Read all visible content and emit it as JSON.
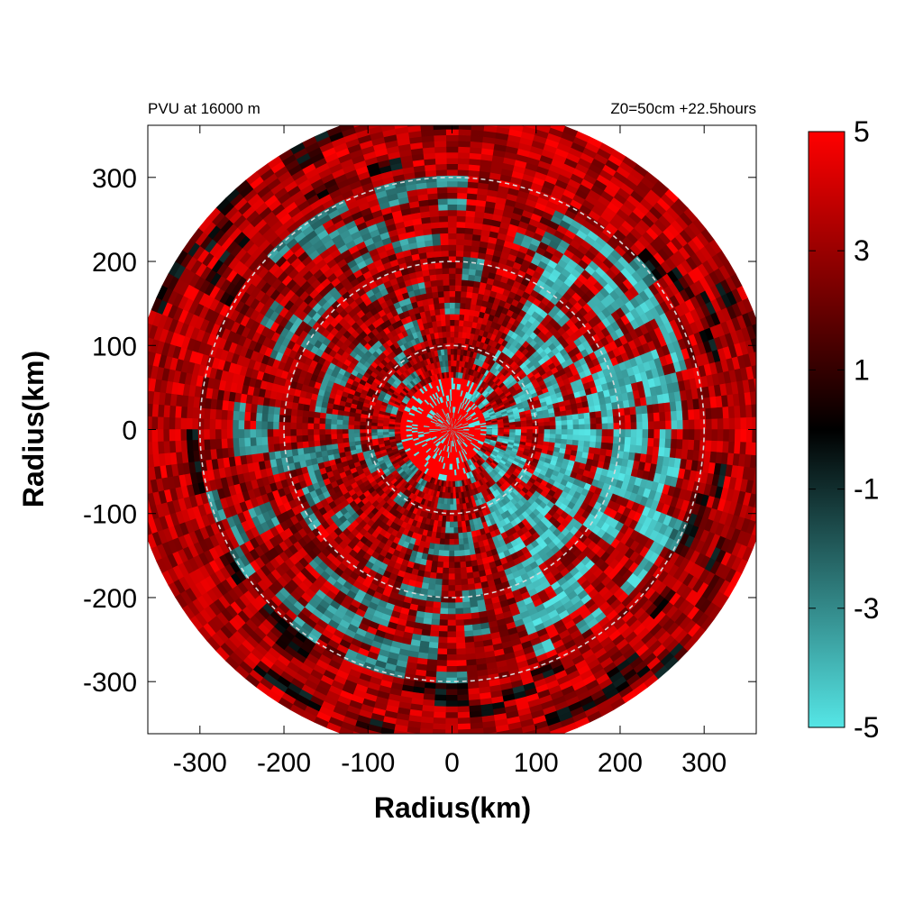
{
  "chart_data": {
    "type": "heatmap",
    "title_left": "PVU at 16000 m",
    "title_right": "Z0=50cm  +22.5hours",
    "xlabel": "Radius(km)",
    "ylabel": "Radius(km)",
    "xlim": [
      -362,
      362
    ],
    "ylim": [
      -362,
      362
    ],
    "domain_radius_km": 385,
    "xticks": [
      -300,
      -200,
      -100,
      0,
      100,
      200,
      300
    ],
    "xtick_labels": [
      "-300",
      "-200",
      "-100",
      "0",
      "100",
      "200",
      "300"
    ],
    "yticks": [
      300,
      200,
      100,
      0,
      -100,
      -200,
      -300
    ],
    "ytick_labels": [
      "300",
      "200",
      "100",
      "0",
      "-100",
      "-200",
      "-300"
    ],
    "range_rings_km": [
      100,
      200,
      300
    ],
    "colorbar": {
      "min": -5,
      "max": 5,
      "ticks": [
        5,
        3,
        1,
        -1,
        -3,
        -5
      ],
      "tick_labels": [
        "5",
        "3",
        "1",
        "-1",
        "-3",
        "-5"
      ],
      "colors": {
        "low": "#55e6e6",
        "mid": "#000000",
        "high": "#ff0000"
      }
    },
    "field_description_values": {
      "inner_core_max": 5,
      "eastern_band_min": -5
    }
  }
}
